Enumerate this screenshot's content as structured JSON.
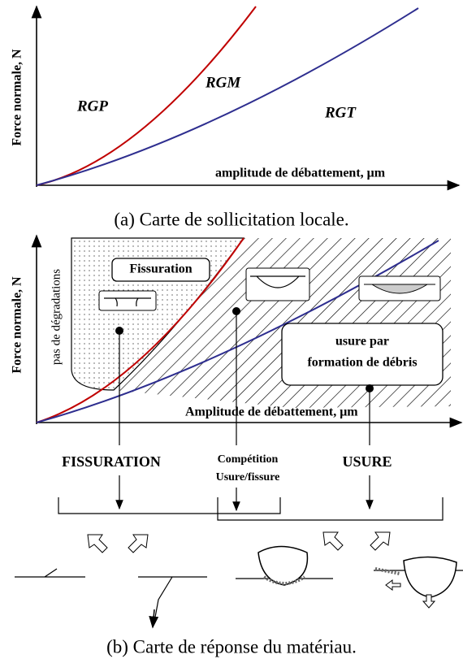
{
  "panel_a": {
    "y_axis_label": "Force normale, N",
    "regions": [
      "RGP",
      "RGM",
      "RGT"
    ],
    "x_axis_label": "amplitude de débattement, μm",
    "caption": "(a) Carte de sollicitation locale."
  },
  "panel_b": {
    "y_axis_label": "Force normale, N",
    "side_label": "pas de dégradations",
    "boxes": {
      "fissuration": "Fissuration",
      "debris": [
        "usure par",
        "formation de débris"
      ]
    },
    "x_axis_label": "Amplitude de débattement, μm",
    "responses": {
      "left": "FISSURATION",
      "middle": [
        "Compétition",
        "Usure/fissure"
      ],
      "right": "USURE"
    },
    "caption": "(b) Carte de réponse du matériau."
  }
}
